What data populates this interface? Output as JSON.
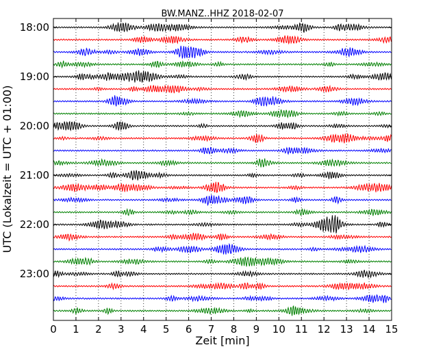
{
  "chart_data": {
    "type": "line",
    "title": "BW.MANZ..HHZ 2018-02-07",
    "xlabel": "Zeit  [min]",
    "ylabel": "UTC (Lokalzeit = UTC + 01:00)",
    "xlim": [
      0,
      15
    ],
    "x_ticks": [
      "0",
      "1",
      "2",
      "3",
      "4",
      "5",
      "6",
      "7",
      "8",
      "9",
      "10",
      "11",
      "12",
      "13",
      "14",
      "15"
    ],
    "y_ticks": [
      "18:00",
      "19:00",
      "20:00",
      "21:00",
      "22:00",
      "23:00"
    ],
    "grid": "vertical-dotted",
    "trace_interval_minutes": 15,
    "trace_count": 24,
    "trace_colors": [
      "#000000",
      "#ff0000",
      "#0000ff",
      "#008000"
    ]
  }
}
